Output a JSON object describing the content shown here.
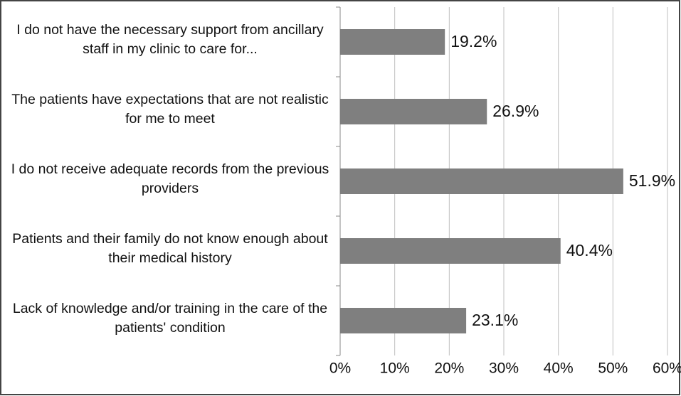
{
  "chart_data": {
    "type": "bar",
    "orientation": "horizontal",
    "categories": [
      "I do not have the necessary support from ancillary staff in my clinic to care for...",
      "The patients have expectations that are not realistic for me to meet",
      "I do not receive adequate records from the previous providers",
      "Patients and their family do not know enough about their medical history",
      "Lack of knowledge and/or training in the care of the patients' condition"
    ],
    "values": [
      19.2,
      26.9,
      51.9,
      40.4,
      23.1
    ],
    "value_labels": [
      "19.2%",
      "26.9%",
      "51.9%",
      "40.4%",
      "23.1%"
    ],
    "color": "#7f7f7f",
    "xlim": [
      0,
      60
    ],
    "xticks": [
      {
        "value": 0,
        "label": "0%"
      },
      {
        "value": 10,
        "label": "10%"
      },
      {
        "value": 20,
        "label": "20%"
      },
      {
        "value": 30,
        "label": "30%"
      },
      {
        "value": 40,
        "label": "40%"
      },
      {
        "value": 50,
        "label": "50%"
      },
      {
        "value": 60,
        "label": "60%"
      }
    ],
    "grid": true
  }
}
